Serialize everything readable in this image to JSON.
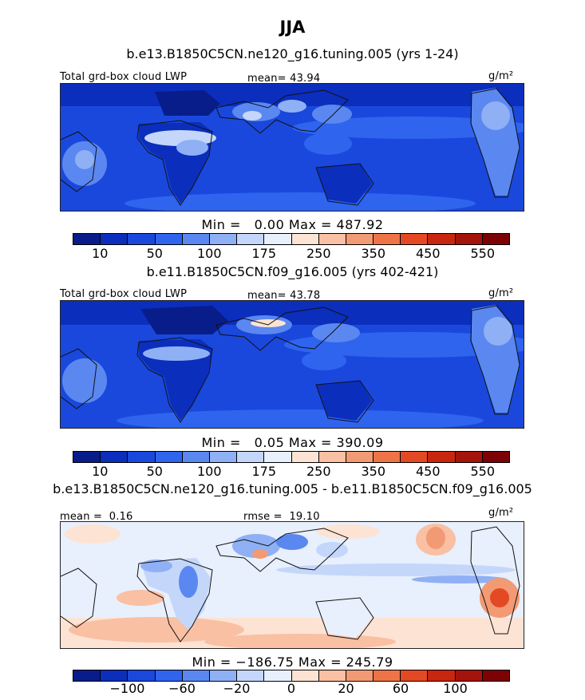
{
  "title": "JJA",
  "colors": {
    "abs_scale": [
      "#081d8a",
      "#0b2ebd",
      "#1a48dc",
      "#2f64ef",
      "#5a88f0",
      "#8fb0f5",
      "#c4d7fa",
      "#e8effd",
      "#fde3d3",
      "#f9c0a3",
      "#f29a74",
      "#ee7448",
      "#e34a23",
      "#c9260f",
      "#a5140a",
      "#7d0205"
    ],
    "diff_scale": [
      "#081d8a",
      "#0b2ebd",
      "#1a48dc",
      "#2f64ef",
      "#5a88f0",
      "#8fb0f5",
      "#c4d7fa",
      "#e8effd",
      "#fde3d3",
      "#f9c0a3",
      "#f29a74",
      "#ee7448",
      "#e34a23",
      "#c9260f",
      "#a5140a",
      "#7d0205"
    ]
  },
  "chart_data": [
    {
      "type": "heatmap",
      "title": "b.e13.B1850C5CN.ne120_g16.tuning.005 (yrs 1-24)",
      "field_label": "Total grd-box cloud LWP",
      "mean_label": "mean=",
      "mean": "43.94",
      "units": "g/m²",
      "min_label": "Min =",
      "min": "0.00",
      "max_label": "Max =",
      "max": "487.92",
      "colorbar_ticks": [
        "10",
        "50",
        "100",
        "175",
        "250",
        "350",
        "450",
        "550"
      ]
    },
    {
      "type": "heatmap",
      "title": "b.e11.B1850C5CN.f09_g16.005 (yrs 402-421)",
      "field_label": "Total grd-box cloud LWP",
      "mean_label": "mean=",
      "mean": "43.78",
      "units": "g/m²",
      "min_label": "Min =",
      "min": "0.05",
      "max_label": "Max =",
      "max": "390.09",
      "colorbar_ticks": [
        "10",
        "50",
        "100",
        "175",
        "250",
        "350",
        "450",
        "550"
      ]
    },
    {
      "type": "heatmap",
      "title": "b.e13.B1850C5CN.ne120_g16.tuning.005 - b.e11.B1850C5CN.f09_g16.005",
      "mean_label": "mean =",
      "mean": "0.16",
      "rmse_label": "rmse =",
      "rmse": "19.10",
      "units": "g/m²",
      "min_label": "Min =",
      "min": "−186.75",
      "max_label": "Max =",
      "max": "245.79",
      "colorbar_ticks": [
        "−100",
        "−60",
        "−20",
        "0",
        "20",
        "60",
        "100"
      ]
    }
  ]
}
